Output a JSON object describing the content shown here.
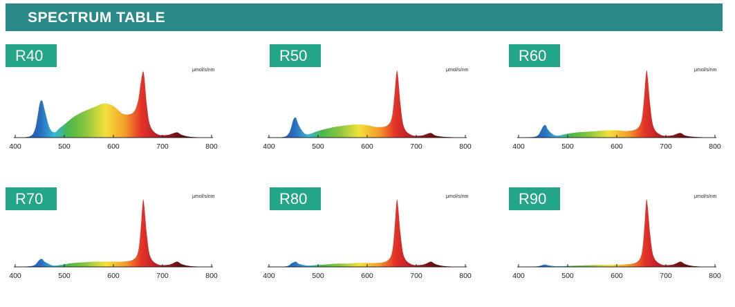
{
  "header": {
    "title": "SPECTRUM TABLE"
  },
  "unit_label": "μmol/s/nm",
  "chart_data": [
    {
      "type": "area",
      "label": "R40",
      "xlabel": "",
      "ylabel": "μmol/s/nm",
      "xlim": [
        400,
        800
      ],
      "xticks": [
        "400",
        "500",
        "600",
        "700",
        "800"
      ],
      "x": [
        400,
        430,
        440,
        445,
        450,
        455,
        460,
        470,
        480,
        490,
        500,
        520,
        540,
        560,
        580,
        600,
        620,
        640,
        650,
        655,
        660,
        663,
        668,
        675,
        690,
        710,
        720,
        730,
        740,
        760,
        800
      ],
      "y": [
        0,
        2,
        12,
        30,
        52,
        56,
        42,
        15,
        8,
        14,
        20,
        32,
        40,
        46,
        52,
        48,
        36,
        38,
        55,
        80,
        100,
        92,
        50,
        18,
        5,
        4,
        6,
        8,
        4,
        1,
        0
      ]
    },
    {
      "type": "area",
      "label": "R50",
      "xlabel": "",
      "ylabel": "μmol/s/nm",
      "xlim": [
        400,
        800
      ],
      "xticks": [
        "400",
        "500",
        "600",
        "700",
        "800"
      ],
      "x": [
        400,
        430,
        440,
        445,
        450,
        455,
        460,
        470,
        480,
        500,
        520,
        540,
        560,
        580,
        600,
        620,
        640,
        650,
        655,
        660,
        663,
        668,
        675,
        690,
        710,
        720,
        730,
        740,
        760,
        800
      ],
      "y": [
        0,
        1,
        6,
        15,
        28,
        30,
        20,
        8,
        5,
        10,
        14,
        17,
        19,
        20,
        19,
        16,
        18,
        30,
        60,
        100,
        92,
        50,
        16,
        4,
        3,
        5,
        7,
        3,
        1,
        0
      ]
    },
    {
      "type": "area",
      "label": "R60",
      "xlabel": "",
      "ylabel": "μmol/s/nm",
      "xlim": [
        400,
        800
      ],
      "xticks": [
        "400",
        "500",
        "600",
        "700",
        "800"
      ],
      "x": [
        400,
        430,
        440,
        445,
        450,
        455,
        460,
        470,
        480,
        500,
        520,
        540,
        560,
        580,
        600,
        620,
        640,
        650,
        655,
        660,
        663,
        668,
        675,
        690,
        710,
        720,
        730,
        740,
        760,
        800
      ],
      "y": [
        0,
        1,
        4,
        10,
        17,
        19,
        12,
        5,
        3,
        6,
        8,
        9,
        10,
        11,
        11,
        10,
        13,
        25,
        55,
        100,
        92,
        50,
        16,
        4,
        3,
        5,
        7,
        3,
        1,
        0
      ]
    },
    {
      "type": "area",
      "label": "R70",
      "xlabel": "",
      "ylabel": "μmol/s/nm",
      "xlim": [
        400,
        800
      ],
      "xticks": [
        "400",
        "500",
        "600",
        "700",
        "800"
      ],
      "x": [
        400,
        430,
        440,
        445,
        450,
        455,
        460,
        470,
        480,
        500,
        520,
        540,
        560,
        580,
        600,
        620,
        640,
        650,
        655,
        660,
        663,
        668,
        675,
        690,
        710,
        720,
        730,
        740,
        760,
        800
      ],
      "y": [
        0,
        1,
        3,
        7,
        11,
        12,
        8,
        4,
        2,
        4,
        6,
        7,
        8,
        8,
        8,
        8,
        11,
        22,
        52,
        100,
        92,
        50,
        16,
        4,
        3,
        5,
        8,
        4,
        1,
        0
      ]
    },
    {
      "type": "area",
      "label": "R80",
      "xlabel": "",
      "ylabel": "μmol/s/nm",
      "xlim": [
        400,
        800
      ],
      "xticks": [
        "400",
        "500",
        "600",
        "700",
        "800"
      ],
      "x": [
        400,
        430,
        440,
        445,
        450,
        455,
        460,
        470,
        480,
        500,
        520,
        540,
        560,
        580,
        600,
        620,
        640,
        650,
        655,
        660,
        663,
        668,
        675,
        690,
        710,
        720,
        730,
        740,
        760,
        800
      ],
      "y": [
        0,
        0.5,
        2,
        5,
        7,
        8,
        5,
        3,
        2,
        3,
        4,
        5,
        5,
        6,
        6,
        6,
        9,
        20,
        50,
        100,
        92,
        50,
        16,
        4,
        3,
        5,
        8,
        4,
        1,
        0
      ]
    },
    {
      "type": "area",
      "label": "R90",
      "xlabel": "",
      "ylabel": "μmol/s/nm",
      "xlim": [
        400,
        800
      ],
      "xticks": [
        "400",
        "500",
        "600",
        "700",
        "800"
      ],
      "x": [
        400,
        430,
        440,
        445,
        450,
        455,
        460,
        470,
        480,
        500,
        520,
        540,
        560,
        580,
        600,
        620,
        640,
        650,
        655,
        660,
        663,
        668,
        675,
        690,
        710,
        720,
        730,
        740,
        760,
        800
      ],
      "y": [
        0,
        0.5,
        1,
        2,
        3,
        3.5,
        2.5,
        1.5,
        1,
        1.5,
        2,
        2.5,
        3,
        3,
        3.5,
        4,
        7,
        18,
        48,
        100,
        92,
        50,
        16,
        4,
        3,
        5,
        8,
        4,
        1,
        0
      ]
    }
  ],
  "colors": {
    "header_bg": "#2a8a88",
    "label_bg": "#22a588",
    "spectrum_stops": [
      "#1a3f9a",
      "#2a6ec0",
      "#36b5d8",
      "#49b84a",
      "#8cc63f",
      "#f3e13a",
      "#f39c2a",
      "#e53528",
      "#b81e28",
      "#5a0e12",
      "#1c0406"
    ]
  }
}
